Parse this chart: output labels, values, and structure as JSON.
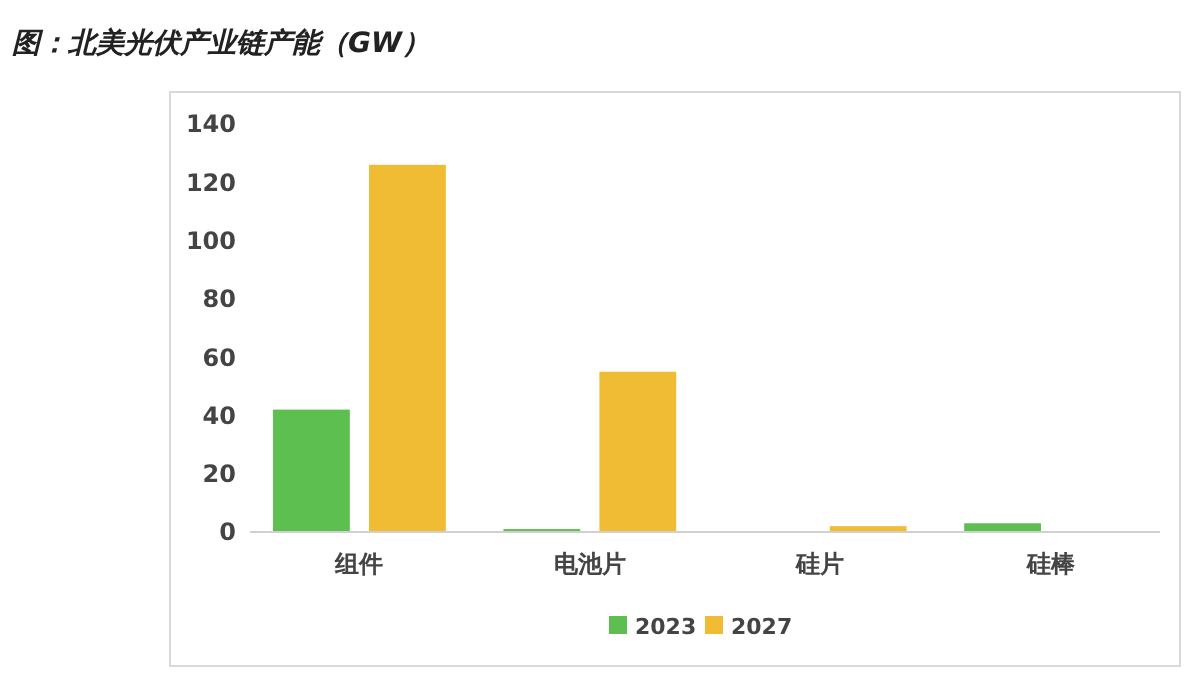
{
  "chart_data": {
    "type": "bar",
    "title": "图：北美光伏产业链产能（GW）",
    "categories": [
      "组件",
      "电池片",
      "硅片",
      "硅棒"
    ],
    "series": [
      {
        "name": "2023",
        "color": "#5dbf50",
        "values": [
          42,
          1,
          0,
          3
        ]
      },
      {
        "name": "2027",
        "color": "#f0bc33",
        "values": [
          126,
          55,
          2,
          0
        ]
      }
    ],
    "ylim": [
      0,
      140
    ],
    "yticks": [
      0,
      20,
      40,
      60,
      80,
      100,
      120,
      140
    ],
    "grid": false,
    "legend": "bottom"
  }
}
